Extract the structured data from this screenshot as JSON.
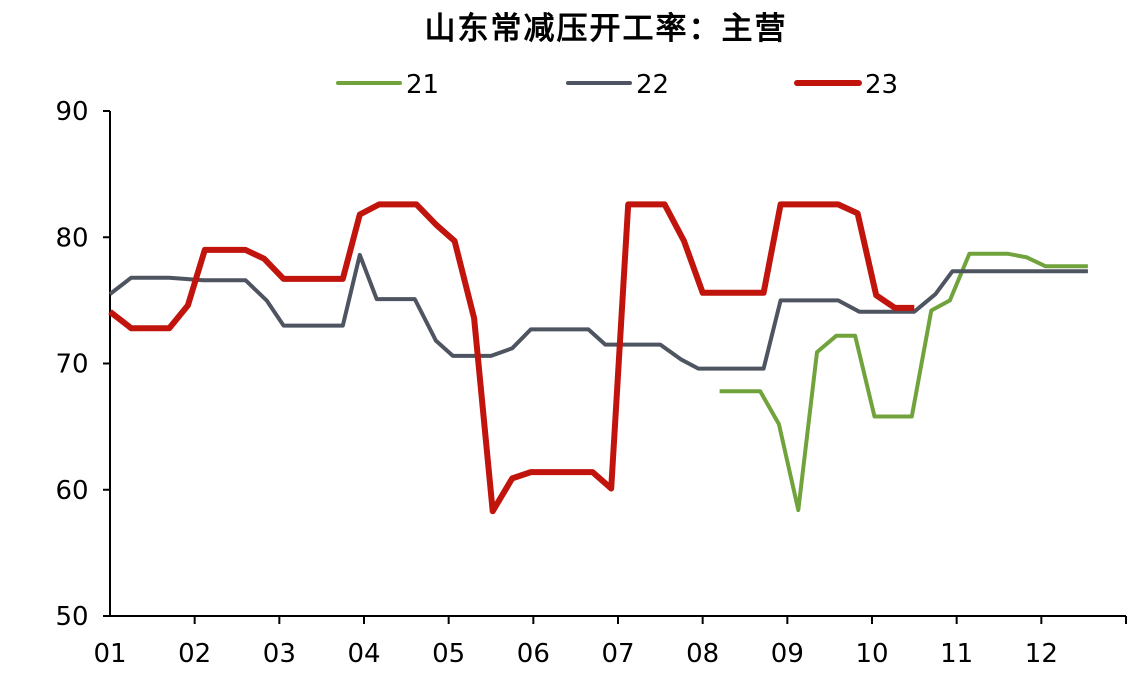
{
  "chart_data": {
    "type": "line",
    "title": "山东常减压开工率：主营",
    "xlabel": "",
    "ylabel": "",
    "ylim": [
      50,
      90
    ],
    "yticks": [
      50,
      60,
      70,
      80,
      90
    ],
    "xlim": [
      1,
      13
    ],
    "x_tick_labels": [
      "01",
      "02",
      "03",
      "04",
      "05",
      "06",
      "07",
      "08",
      "09",
      "10",
      "11",
      "12"
    ],
    "legend_position": "top",
    "grid": false,
    "series": [
      {
        "name": "21",
        "color": "#70a33c",
        "points": [
          [
            8.2,
            67.8
          ],
          [
            8.45,
            67.8
          ],
          [
            8.68,
            67.8
          ],
          [
            8.9,
            65.2
          ],
          [
            9.13,
            58.4
          ],
          [
            9.35,
            70.9
          ],
          [
            9.58,
            72.2
          ],
          [
            9.8,
            72.2
          ],
          [
            10.03,
            65.8
          ],
          [
            10.25,
            65.8
          ],
          [
            10.47,
            65.8
          ],
          [
            10.7,
            74.2
          ],
          [
            10.92,
            75.0
          ],
          [
            11.15,
            78.7
          ],
          [
            11.6,
            78.7
          ],
          [
            11.83,
            78.4
          ],
          [
            12.05,
            77.7
          ],
          [
            12.28,
            77.7
          ],
          [
            12.55,
            77.7
          ]
        ]
      },
      {
        "name": "22",
        "color": "#4e5561",
        "points": [
          [
            1.0,
            75.5
          ],
          [
            1.25,
            76.8
          ],
          [
            1.7,
            76.8
          ],
          [
            2.1,
            76.6
          ],
          [
            2.6,
            76.6
          ],
          [
            2.85,
            75.0
          ],
          [
            3.05,
            73.0
          ],
          [
            3.75,
            73.0
          ],
          [
            3.95,
            78.6
          ],
          [
            4.15,
            75.1
          ],
          [
            4.6,
            75.1
          ],
          [
            4.85,
            71.8
          ],
          [
            5.05,
            70.6
          ],
          [
            5.5,
            70.6
          ],
          [
            5.75,
            71.2
          ],
          [
            5.97,
            72.7
          ],
          [
            6.65,
            72.7
          ],
          [
            6.85,
            71.5
          ],
          [
            7.5,
            71.5
          ],
          [
            7.75,
            70.3
          ],
          [
            7.95,
            69.6
          ],
          [
            8.72,
            69.6
          ],
          [
            8.92,
            75.0
          ],
          [
            9.6,
            75.0
          ],
          [
            9.85,
            74.1
          ],
          [
            10.5,
            74.1
          ],
          [
            10.75,
            75.5
          ],
          [
            10.95,
            77.3
          ],
          [
            12.55,
            77.3
          ]
        ]
      },
      {
        "name": "23",
        "color": "#c0140c",
        "points": [
          [
            1.0,
            74.1
          ],
          [
            1.25,
            72.8
          ],
          [
            1.7,
            72.8
          ],
          [
            1.92,
            74.6
          ],
          [
            2.12,
            79.0
          ],
          [
            2.6,
            79.0
          ],
          [
            2.82,
            78.3
          ],
          [
            3.05,
            76.7
          ],
          [
            3.75,
            76.7
          ],
          [
            3.95,
            81.8
          ],
          [
            4.18,
            82.6
          ],
          [
            4.62,
            82.6
          ],
          [
            4.85,
            81.0
          ],
          [
            5.07,
            79.7
          ],
          [
            5.3,
            73.6
          ],
          [
            5.52,
            58.3
          ],
          [
            5.75,
            60.9
          ],
          [
            5.97,
            61.4
          ],
          [
            6.7,
            61.4
          ],
          [
            6.92,
            60.1
          ],
          [
            7.12,
            82.6
          ],
          [
            7.55,
            82.6
          ],
          [
            7.78,
            79.7
          ],
          [
            8.0,
            75.6
          ],
          [
            8.72,
            75.6
          ],
          [
            8.92,
            82.6
          ],
          [
            9.6,
            82.6
          ],
          [
            9.83,
            81.9
          ],
          [
            10.05,
            75.4
          ],
          [
            10.27,
            74.4
          ],
          [
            10.5,
            74.4
          ]
        ]
      }
    ]
  }
}
